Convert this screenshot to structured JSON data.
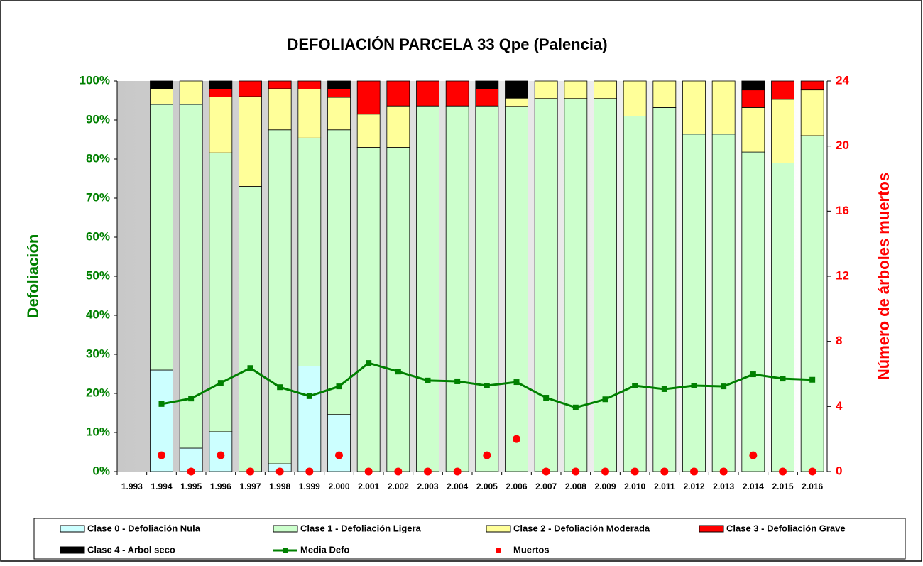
{
  "chart_data": {
    "type": "bar",
    "stacked": true,
    "title": "DEFOLIACIÓN PARCELA 33 Qpe (Palencia)",
    "y_label": "Defoliación",
    "y2_label": "Número de árboles muertos",
    "categories": [
      "1.993",
      "1.994",
      "1.995",
      "1.996",
      "1.997",
      "1.998",
      "1.999",
      "2.000",
      "2.001",
      "2.002",
      "2.003",
      "2.004",
      "2.005",
      "2.006",
      "2.007",
      "2.008",
      "2.009",
      "2.010",
      "2.011",
      "2.012",
      "2.013",
      "2.014",
      "2.015",
      "2.016"
    ],
    "ylim": [
      0,
      100
    ],
    "yticks": [
      {
        "value": 0,
        "label": "0%"
      },
      {
        "value": 10,
        "label": "10%"
      },
      {
        "value": 20,
        "label": "20%"
      },
      {
        "value": 30,
        "label": "30%"
      },
      {
        "value": 40,
        "label": "40%"
      },
      {
        "value": 50,
        "label": "50%"
      },
      {
        "value": 60,
        "label": "60%"
      },
      {
        "value": 70,
        "label": "70%"
      },
      {
        "value": 80,
        "label": "80%"
      },
      {
        "value": 90,
        "label": "90%"
      },
      {
        "value": 100,
        "label": "100%"
      }
    ],
    "y2lim": [
      0,
      24
    ],
    "y2ticks": [
      0,
      4,
      8,
      12,
      16,
      20,
      24
    ],
    "grid": false,
    "legend": "bottom",
    "series": [
      {
        "name": "Clase 0 - Defoliación Nula",
        "color": "#ccffff",
        "values": [
          null,
          26,
          6,
          10.2,
          0,
          2,
          27,
          14.6,
          0,
          0,
          0,
          0,
          0,
          0,
          0,
          0,
          0,
          0,
          0,
          0,
          0,
          0,
          0,
          0
        ]
      },
      {
        "name": "Clase 1 - Defoliación Ligera",
        "color": "#ccffcc",
        "values": [
          null,
          68,
          88,
          71.4,
          73,
          85.5,
          58.4,
          72.9,
          83,
          83,
          93.6,
          93.6,
          93.6,
          93.5,
          95.5,
          95.5,
          95.5,
          91,
          93.2,
          86.4,
          86.4,
          81.8,
          79,
          86
        ]
      },
      {
        "name": "Clase 2 - Defoliación Moderada",
        "color": "#ffff99",
        "values": [
          null,
          4,
          6,
          14.3,
          23,
          10.5,
          12.5,
          8.3,
          8.5,
          10.6,
          0,
          0,
          0,
          2.1,
          4.5,
          4.5,
          4.5,
          9,
          6.8,
          13.6,
          13.6,
          11.4,
          16.3,
          11.7
        ]
      },
      {
        "name": "Clase 3 - Defoliación Grave",
        "color": "#ff0000",
        "values": [
          null,
          0,
          0,
          2,
          4,
          2,
          2.1,
          2.1,
          8.5,
          6.4,
          6.4,
          6.4,
          4.3,
          0,
          0,
          0,
          0,
          0,
          0,
          0,
          0,
          4.5,
          4.7,
          2.3
        ]
      },
      {
        "name": "Clase 4 - Arbol seco",
        "color": "#000000",
        "values": [
          null,
          2,
          0,
          2.1,
          0,
          0,
          0,
          2.1,
          0,
          0,
          0,
          0,
          2.1,
          4.4,
          0,
          0,
          0,
          0,
          0,
          0,
          0,
          2.3,
          0,
          0
        ]
      },
      {
        "name": "Media Defo",
        "type": "line",
        "color": "#008000",
        "values": [
          null,
          17.3,
          18.7,
          22.7,
          26.5,
          21.6,
          19.3,
          21.8,
          27.8,
          25.6,
          23.3,
          23.1,
          22,
          22.9,
          18.9,
          16.4,
          18.5,
          22,
          21.1,
          22,
          21.8,
          24.9,
          23.8,
          23.5
        ]
      },
      {
        "name": "Muertos",
        "type": "scatter",
        "axis": "y2",
        "color": "#ff0000",
        "values": [
          null,
          1,
          0,
          1,
          0,
          0,
          0,
          1,
          0,
          0,
          0,
          0,
          1,
          2,
          0,
          0,
          0,
          0,
          0,
          0,
          0,
          1,
          0,
          0
        ]
      }
    ]
  }
}
